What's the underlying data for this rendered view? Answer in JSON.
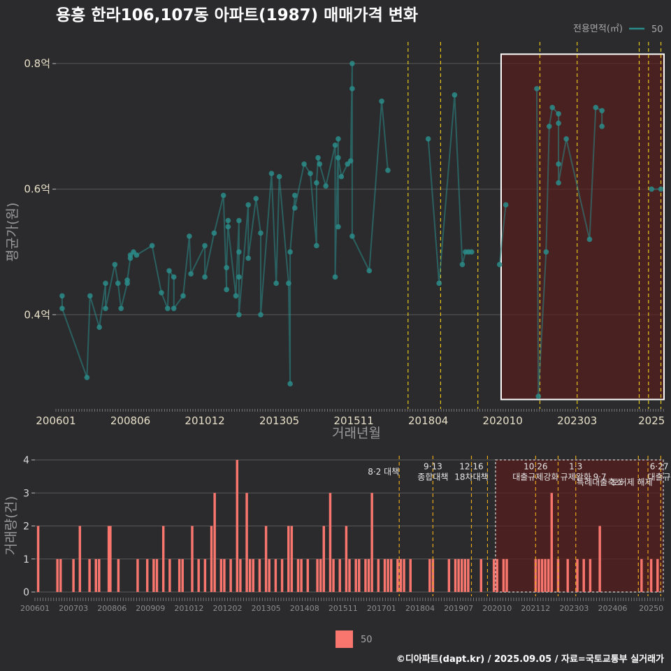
{
  "title": "용흥 한라106,107동 아파트(1987) 매매가격 변화",
  "footer": "©디아파트(dapt.kr) / 2025.09.05 / 자료=국토교통부 실거래가",
  "colors": {
    "series": "#2a8c8a",
    "bars": "#f8766d",
    "event_line": "#e6c619",
    "highlight": "#5a1c1c",
    "grid": "#585858"
  },
  "chart_data": [
    {
      "type": "line",
      "title": "용흥 한라106,107동 아파트(1987) 매매가격 변화",
      "xlabel": "거래년월",
      "ylabel": "평균가(원)",
      "ylim": [
        0.25,
        0.84
      ],
      "xlim": [
        2006.0,
        2025.6
      ],
      "x_ticks": [
        {
          "x": 2006.0,
          "label": "200601"
        },
        {
          "x": 2008.4,
          "label": "200806"
        },
        {
          "x": 2010.8,
          "label": "201012"
        },
        {
          "x": 2013.2,
          "label": "201305"
        },
        {
          "x": 2015.6,
          "label": "201511"
        },
        {
          "x": 2018.0,
          "label": "201804"
        },
        {
          "x": 2020.4,
          "label": "202010"
        },
        {
          "x": 2022.8,
          "label": "202303"
        },
        {
          "x": 2025.2,
          "label": "2025"
        }
      ],
      "y_ticks": [
        {
          "v": 0.4,
          "label": "0.4억"
        },
        {
          "v": 0.6,
          "label": "0.6억"
        },
        {
          "v": 0.8,
          "label": "0.8억"
        }
      ],
      "legend": {
        "title": "전용면적(㎡)",
        "entries": [
          "50"
        ],
        "placement": "top-right"
      },
      "series": [
        {
          "name": "50",
          "points": [
            [
              2006.2,
              0.43
            ],
            [
              2006.2,
              0.41
            ],
            [
              2007.0,
              0.3
            ],
            [
              2007.1,
              0.43
            ],
            [
              2007.4,
              0.38
            ],
            [
              2007.6,
              0.45
            ],
            [
              2007.6,
              0.41
            ],
            [
              2007.9,
              0.48
            ],
            [
              2008.0,
              0.45
            ],
            [
              2008.1,
              0.41
            ],
            [
              2008.3,
              0.45
            ],
            [
              2008.3,
              0.455
            ],
            [
              2008.4,
              0.49
            ],
            [
              2008.4,
              0.495
            ],
            [
              2008.5,
              0.5
            ],
            [
              2008.6,
              0.495
            ],
            [
              2009.1,
              0.51
            ],
            [
              2009.4,
              0.435
            ],
            [
              2009.6,
              0.41
            ],
            [
              2009.65,
              0.47
            ],
            [
              2009.8,
              0.46
            ],
            [
              2009.8,
              0.41
            ],
            [
              2010.1,
              0.43
            ],
            [
              2010.3,
              0.525
            ],
            [
              2010.35,
              0.465
            ],
            [
              2010.8,
              0.51
            ],
            [
              2010.8,
              0.46
            ],
            [
              2011.1,
              0.53
            ],
            [
              2011.4,
              0.59
            ],
            [
              2011.5,
              0.44
            ],
            [
              2011.5,
              0.475
            ],
            [
              2011.55,
              0.55
            ],
            [
              2011.55,
              0.54
            ],
            [
              2011.8,
              0.43
            ],
            [
              2011.9,
              0.55
            ],
            [
              2011.9,
              0.5
            ],
            [
              2011.9,
              0.46
            ],
            [
              2011.9,
              0.4
            ],
            [
              2012.2,
              0.575
            ],
            [
              2012.2,
              0.49
            ],
            [
              2012.45,
              0.585
            ],
            [
              2012.6,
              0.53
            ],
            [
              2012.6,
              0.4
            ],
            [
              2012.95,
              0.625
            ],
            [
              2013.1,
              0.45
            ],
            [
              2013.2,
              0.62
            ],
            [
              2013.5,
              0.45
            ],
            [
              2013.55,
              0.29
            ],
            [
              2013.55,
              0.5
            ],
            [
              2013.7,
              0.59
            ],
            [
              2013.7,
              0.57
            ],
            [
              2014.0,
              0.64
            ],
            [
              2014.2,
              0.625
            ],
            [
              2014.4,
              0.51
            ],
            [
              2014.4,
              0.61
            ],
            [
              2014.45,
              0.65
            ],
            [
              2014.5,
              0.64
            ],
            [
              2014.7,
              0.605
            ],
            [
              2015.0,
              0.67
            ],
            [
              2015.0,
              0.46
            ],
            [
              2015.1,
              0.68
            ],
            [
              2015.1,
              0.54
            ],
            [
              2015.1,
              0.65
            ],
            [
              2015.2,
              0.62
            ],
            [
              2015.4,
              0.64
            ],
            [
              2015.5,
              0.645
            ],
            [
              2015.55,
              0.8
            ],
            [
              2015.55,
              0.76
            ],
            [
              2015.55,
              0.525
            ],
            [
              2016.1,
              0.47
            ],
            [
              2016.5,
              0.74
            ],
            [
              2016.7,
              0.63
            ],
            [
              2018.0,
              0.68
            ],
            [
              2018.35,
              0.45
            ],
            [
              2018.85,
              0.75
            ],
            [
              2019.1,
              0.48
            ],
            [
              2019.2,
              0.5
            ],
            [
              2019.3,
              0.5
            ],
            [
              2019.4,
              0.5
            ],
            [
              2020.3,
              0.48
            ],
            [
              2020.5,
              0.575
            ],
            [
              2021.5,
              0.76
            ],
            [
              2021.55,
              0.27
            ],
            [
              2021.8,
              0.5
            ],
            [
              2021.9,
              0.7
            ],
            [
              2022.0,
              0.73
            ],
            [
              2022.2,
              0.72
            ],
            [
              2022.2,
              0.705
            ],
            [
              2022.2,
              0.64
            ],
            [
              2022.2,
              0.61
            ],
            [
              2022.45,
              0.68
            ],
            [
              2023.2,
              0.52
            ],
            [
              2023.4,
              0.73
            ],
            [
              2023.6,
              0.725
            ],
            [
              2023.6,
              0.7
            ],
            [
              2025.2,
              0.6
            ],
            [
              2025.5,
              0.6
            ]
          ]
        }
      ],
      "event_x": [
        2017.35,
        2018.4,
        2019.6,
        2021.6,
        2022.8,
        2024.8,
        2025.1,
        2025.5
      ],
      "highlight_range": {
        "x": [
          2020.35,
          2025.6
        ],
        "y": [
          0.265,
          0.815
        ]
      }
    },
    {
      "type": "bar",
      "ylabel": "거래량(건)",
      "ylim": [
        0,
        4
      ],
      "xlim": [
        2006.0,
        2025.6
      ],
      "y_ticks": [
        0,
        1,
        2,
        3,
        4
      ],
      "x_ticks": [
        {
          "x": 2006.0,
          "label": "200601"
        },
        {
          "x": 2007.2,
          "label": "200703"
        },
        {
          "x": 2008.4,
          "label": "200806"
        },
        {
          "x": 2009.6,
          "label": "200909"
        },
        {
          "x": 2010.8,
          "label": "201012"
        },
        {
          "x": 2012.0,
          "label": "201202"
        },
        {
          "x": 2013.2,
          "label": "201305"
        },
        {
          "x": 2014.4,
          "label": "201408"
        },
        {
          "x": 2015.6,
          "label": "201511"
        },
        {
          "x": 2016.8,
          "label": "201701"
        },
        {
          "x": 2018.0,
          "label": "201804"
        },
        {
          "x": 2019.2,
          "label": "201907"
        },
        {
          "x": 2020.4,
          "label": "202010"
        },
        {
          "x": 2021.6,
          "label": "202112"
        },
        {
          "x": 2022.8,
          "label": "202303"
        },
        {
          "x": 2024.0,
          "label": "202406"
        },
        {
          "x": 2025.2,
          "label": "20250"
        }
      ],
      "legend": {
        "entries": [
          "50"
        ],
        "placement": "bottom"
      },
      "bars": [
        [
          2006.1,
          2
        ],
        [
          2006.7,
          1
        ],
        [
          2006.8,
          1
        ],
        [
          2007.2,
          1
        ],
        [
          2007.4,
          2
        ],
        [
          2007.7,
          1
        ],
        [
          2007.9,
          1
        ],
        [
          2008.0,
          1
        ],
        [
          2008.3,
          2
        ],
        [
          2008.35,
          2
        ],
        [
          2008.6,
          1
        ],
        [
          2009.2,
          1
        ],
        [
          2009.5,
          1
        ],
        [
          2009.7,
          1
        ],
        [
          2009.8,
          1
        ],
        [
          2010.0,
          2
        ],
        [
          2010.2,
          1
        ],
        [
          2010.5,
          1
        ],
        [
          2010.6,
          1
        ],
        [
          2010.9,
          2
        ],
        [
          2011.1,
          1
        ],
        [
          2011.3,
          1
        ],
        [
          2011.5,
          2
        ],
        [
          2011.6,
          3
        ],
        [
          2011.8,
          1
        ],
        [
          2011.9,
          1
        ],
        [
          2012.1,
          1
        ],
        [
          2012.3,
          4
        ],
        [
          2012.4,
          1
        ],
        [
          2012.6,
          3
        ],
        [
          2012.7,
          1
        ],
        [
          2012.8,
          1
        ],
        [
          2013.0,
          1
        ],
        [
          2013.2,
          2
        ],
        [
          2013.3,
          1
        ],
        [
          2013.5,
          1
        ],
        [
          2013.7,
          1
        ],
        [
          2013.9,
          2
        ],
        [
          2014.0,
          2
        ],
        [
          2014.2,
          1
        ],
        [
          2014.3,
          1
        ],
        [
          2014.5,
          1
        ],
        [
          2014.8,
          1
        ],
        [
          2014.9,
          1
        ],
        [
          2015.0,
          2
        ],
        [
          2015.2,
          3
        ],
        [
          2015.3,
          1
        ],
        [
          2015.5,
          1
        ],
        [
          2015.7,
          2
        ],
        [
          2015.8,
          1
        ],
        [
          2016.0,
          1
        ],
        [
          2016.1,
          1
        ],
        [
          2016.3,
          1
        ],
        [
          2016.4,
          1
        ],
        [
          2016.5,
          3
        ],
        [
          2016.7,
          1
        ],
        [
          2016.9,
          1
        ],
        [
          2017.0,
          1
        ],
        [
          2017.1,
          1
        ],
        [
          2017.3,
          1
        ],
        [
          2017.4,
          1
        ],
        [
          2017.5,
          1
        ],
        [
          2017.7,
          1
        ],
        [
          2018.3,
          1
        ],
        [
          2018.4,
          1
        ],
        [
          2018.9,
          1
        ],
        [
          2019.1,
          1
        ],
        [
          2019.2,
          1
        ],
        [
          2019.3,
          1
        ],
        [
          2019.4,
          1
        ],
        [
          2019.5,
          1
        ],
        [
          2019.9,
          1
        ],
        [
          2020.3,
          1
        ],
        [
          2020.4,
          1
        ],
        [
          2020.6,
          1
        ],
        [
          2020.7,
          1
        ],
        [
          2021.6,
          1
        ],
        [
          2021.7,
          1
        ],
        [
          2021.8,
          1
        ],
        [
          2021.9,
          1
        ],
        [
          2022.0,
          1
        ],
        [
          2022.1,
          3
        ],
        [
          2022.3,
          1
        ],
        [
          2022.6,
          1
        ],
        [
          2022.9,
          1
        ],
        [
          2023.1,
          1
        ],
        [
          2023.3,
          1
        ],
        [
          2023.6,
          2
        ],
        [
          2024.9,
          1
        ],
        [
          2025.2,
          1
        ],
        [
          2025.4,
          1
        ]
      ],
      "event_x": [
        2017.35,
        2018.4,
        2019.6,
        2020.1,
        2021.6,
        2022.3,
        2022.85,
        2024.8,
        2025.1,
        2025.5
      ],
      "events": [
        {
          "x": 2017.35,
          "row": 2,
          "anchor": "end",
          "label": "8·2 대책"
        },
        {
          "x": 2018.4,
          "row": 1,
          "anchor": "middle",
          "label": "9·13"
        },
        {
          "x": 2018.4,
          "row": 3,
          "anchor": "middle",
          "label": "종합대책"
        },
        {
          "x": 2019.6,
          "row": 1,
          "anchor": "middle",
          "label": "12·16"
        },
        {
          "x": 2019.6,
          "row": 3,
          "anchor": "middle",
          "label": "18차대책"
        },
        {
          "x": 2021.6,
          "row": 1,
          "anchor": "middle",
          "label": "10·26"
        },
        {
          "x": 2021.6,
          "row": 3,
          "anchor": "middle",
          "label": "대출규제강화"
        },
        {
          "x": 2022.85,
          "row": 1,
          "anchor": "middle",
          "label": "1·3"
        },
        {
          "x": 2022.85,
          "row": 3,
          "anchor": "middle",
          "label": "규제완화"
        },
        {
          "x": 2023.6,
          "row": 3,
          "anchor": "middle",
          "label": "9·7"
        },
        {
          "x": 2023.6,
          "row": 4,
          "anchor": "middle",
          "label": "특례대출축소"
        },
        {
          "x": 2024.6,
          "row": 4,
          "anchor": "middle",
          "label": "토허제 해제"
        },
        {
          "x": 2025.45,
          "row": 1,
          "anchor": "middle",
          "label": "6·27"
        },
        {
          "x": 2025.45,
          "row": 3,
          "anchor": "middle",
          "label": "대출규"
        }
      ],
      "highlight_range": {
        "x": [
          2020.35,
          2025.6
        ]
      }
    }
  ]
}
